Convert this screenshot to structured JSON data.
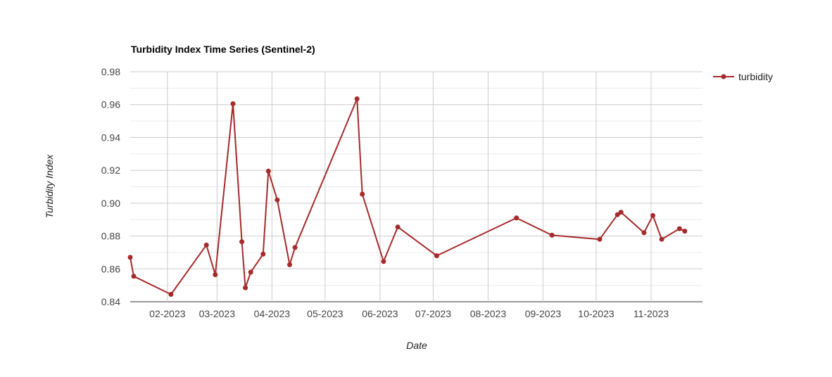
{
  "chart_data": {
    "type": "line",
    "title": "Turbidity Index Time Series (Sentinel-2)",
    "xlabel": "Date",
    "ylabel": "Turbidity Index",
    "x_range": [
      "2023-01-11",
      "2023-11-30"
    ],
    "ylim": [
      0.84,
      0.98
    ],
    "y_ticks": [
      0.84,
      0.86,
      0.88,
      0.9,
      0.92,
      0.94,
      0.96,
      0.98
    ],
    "y_tick_labels": [
      "0.84",
      "0.86",
      "0.88",
      "0.90",
      "0.92",
      "0.94",
      "0.96",
      "0.98"
    ],
    "x_ticks": [
      "2023-02-01",
      "2023-03-01",
      "2023-04-01",
      "2023-05-01",
      "2023-06-01",
      "2023-07-01",
      "2023-08-01",
      "2023-09-01",
      "2023-10-01",
      "2023-11-01"
    ],
    "x_tick_labels": [
      "02-2023",
      "03-2023",
      "04-2023",
      "05-2023",
      "06-2023",
      "07-2023",
      "08-2023",
      "09-2023",
      "10-2023",
      "11-2023"
    ],
    "grid": true,
    "legend_position": "top-right",
    "series": [
      {
        "name": "turbidity",
        "color": "#a52a2a",
        "points": [
          {
            "x": "2023-01-11",
            "y": 0.867
          },
          {
            "x": "2023-01-13",
            "y": 0.8555
          },
          {
            "x": "2023-02-03",
            "y": 0.8445
          },
          {
            "x": "2023-02-23",
            "y": 0.8745
          },
          {
            "x": "2023-02-28",
            "y": 0.8565
          },
          {
            "x": "2023-03-10",
            "y": 0.9605
          },
          {
            "x": "2023-03-15",
            "y": 0.8765
          },
          {
            "x": "2023-03-17",
            "y": 0.8485
          },
          {
            "x": "2023-03-20",
            "y": 0.858
          },
          {
            "x": "2023-03-27",
            "y": 0.869
          },
          {
            "x": "2023-03-30",
            "y": 0.9195
          },
          {
            "x": "2023-04-04",
            "y": 0.902
          },
          {
            "x": "2023-04-11",
            "y": 0.8625
          },
          {
            "x": "2023-04-14",
            "y": 0.873
          },
          {
            "x": "2023-05-19",
            "y": 0.9635
          },
          {
            "x": "2023-05-22",
            "y": 0.9055
          },
          {
            "x": "2023-06-03",
            "y": 0.8645
          },
          {
            "x": "2023-06-11",
            "y": 0.8855
          },
          {
            "x": "2023-07-03",
            "y": 0.868
          },
          {
            "x": "2023-08-17",
            "y": 0.891
          },
          {
            "x": "2023-09-06",
            "y": 0.8805
          },
          {
            "x": "2023-10-03",
            "y": 0.878
          },
          {
            "x": "2023-10-13",
            "y": 0.893
          },
          {
            "x": "2023-10-15",
            "y": 0.8945
          },
          {
            "x": "2023-10-28",
            "y": 0.882
          },
          {
            "x": "2023-11-02",
            "y": 0.8925
          },
          {
            "x": "2023-11-07",
            "y": 0.878
          },
          {
            "x": "2023-11-17",
            "y": 0.8845
          },
          {
            "x": "2023-11-20",
            "y": 0.883
          }
        ]
      }
    ]
  }
}
